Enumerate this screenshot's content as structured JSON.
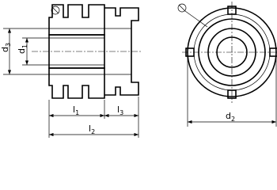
{
  "dimensions": {
    "d3": {
      "symbol": "d",
      "index": "3"
    },
    "d1": {
      "symbol": "d",
      "index": "1"
    },
    "l1": {
      "symbol": "l",
      "index": "1"
    },
    "l3": {
      "symbol": "l",
      "index": "3"
    },
    "l2": {
      "symbol": "l",
      "index": "2"
    },
    "d2": {
      "symbol": "d",
      "index": "2"
    }
  }
}
